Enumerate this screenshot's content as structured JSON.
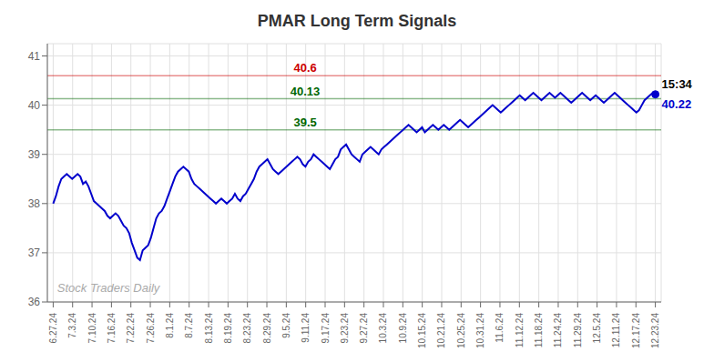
{
  "chart_data": {
    "type": "line",
    "title": "PMAR Long Term Signals",
    "color": "#0000cc",
    "grid": true,
    "xlim": [
      -0.3,
      31.3
    ],
    "xticks": [
      {
        "value": 0,
        "label": "6.27.24"
      },
      {
        "value": 1,
        "label": "7.3.24"
      },
      {
        "value": 2,
        "label": "7.10.24"
      },
      {
        "value": 3,
        "label": "7.16.24"
      },
      {
        "value": 4,
        "label": "7.22.24"
      },
      {
        "value": 5,
        "label": "7.26.24"
      },
      {
        "value": 6,
        "label": "8.1.24"
      },
      {
        "value": 7,
        "label": "8.7.24"
      },
      {
        "value": 8,
        "label": "8.13.24"
      },
      {
        "value": 9,
        "label": "8.19.24"
      },
      {
        "value": 10,
        "label": "8.23.24"
      },
      {
        "value": 11,
        "label": "8.29.24"
      },
      {
        "value": 12,
        "label": "9.5.24"
      },
      {
        "value": 13,
        "label": "9.11.24"
      },
      {
        "value": 14,
        "label": "9.17.24"
      },
      {
        "value": 15,
        "label": "9.23.24"
      },
      {
        "value": 16,
        "label": "9.27.24"
      },
      {
        "value": 17,
        "label": "10.3.24"
      },
      {
        "value": 18,
        "label": "10.9.24"
      },
      {
        "value": 19,
        "label": "10.15.24"
      },
      {
        "value": 20,
        "label": "10.21.24"
      },
      {
        "value": 21,
        "label": "10.25.24"
      },
      {
        "value": 22,
        "label": "10.31.24"
      },
      {
        "value": 23,
        "label": "11.6.24"
      },
      {
        "value": 24,
        "label": "11.12.24"
      },
      {
        "value": 25,
        "label": "11.18.24"
      },
      {
        "value": 26,
        "label": "11.24.24"
      },
      {
        "value": 27,
        "label": "11.29.24"
      },
      {
        "value": 28,
        "label": "12.5.24"
      },
      {
        "value": 29,
        "label": "12.11.24"
      },
      {
        "value": 30,
        "label": "12.17.24"
      },
      {
        "value": 31,
        "label": "12.23.24"
      }
    ],
    "ylim": [
      36.0,
      41.25
    ],
    "yticks": [
      36,
      37,
      38,
      39,
      40,
      41
    ],
    "values": [
      38.0,
      38.15,
      38.35,
      38.5,
      38.55,
      38.6,
      38.55,
      38.5,
      38.55,
      38.6,
      38.55,
      38.4,
      38.45,
      38.35,
      38.2,
      38.05,
      38.0,
      37.95,
      37.9,
      37.85,
      37.75,
      37.7,
      37.75,
      37.8,
      37.75,
      37.65,
      37.55,
      37.5,
      37.4,
      37.2,
      37.05,
      36.9,
      36.85,
      37.05,
      37.1,
      37.15,
      37.3,
      37.5,
      37.7,
      37.8,
      37.85,
      37.95,
      38.1,
      38.25,
      38.4,
      38.55,
      38.65,
      38.7,
      38.75,
      38.7,
      38.65,
      38.5,
      38.4,
      38.35,
      38.3,
      38.25,
      38.2,
      38.15,
      38.1,
      38.05,
      38.0,
      38.05,
      38.1,
      38.05,
      38.0,
      38.05,
      38.1,
      38.2,
      38.1,
      38.05,
      38.15,
      38.2,
      38.3,
      38.4,
      38.5,
      38.65,
      38.75,
      38.8,
      38.85,
      38.9,
      38.8,
      38.7,
      38.65,
      38.6,
      38.65,
      38.7,
      38.75,
      38.8,
      38.85,
      38.9,
      38.95,
      38.9,
      38.8,
      38.75,
      38.85,
      38.9,
      39.0,
      38.95,
      38.9,
      38.85,
      38.8,
      38.75,
      38.7,
      38.8,
      38.9,
      38.95,
      39.1,
      39.15,
      39.2,
      39.1,
      39.0,
      38.95,
      38.9,
      38.85,
      39.0,
      39.05,
      39.1,
      39.15,
      39.1,
      39.05,
      39.0,
      39.1,
      39.15,
      39.2,
      39.25,
      39.3,
      39.35,
      39.4,
      39.45,
      39.5,
      39.55,
      39.6,
      39.55,
      39.5,
      39.45,
      39.5,
      39.55,
      39.45,
      39.5,
      39.55,
      39.6,
      39.55,
      39.5,
      39.55,
      39.6,
      39.55,
      39.5,
      39.55,
      39.6,
      39.65,
      39.7,
      39.65,
      39.6,
      39.55,
      39.6,
      39.65,
      39.7,
      39.75,
      39.8,
      39.85,
      39.9,
      39.95,
      40.0,
      39.95,
      39.9,
      39.85,
      39.9,
      39.95,
      40.0,
      40.05,
      40.1,
      40.15,
      40.2,
      40.15,
      40.1,
      40.15,
      40.2,
      40.25,
      40.2,
      40.15,
      40.1,
      40.15,
      40.2,
      40.25,
      40.2,
      40.15,
      40.2,
      40.25,
      40.2,
      40.15,
      40.1,
      40.05,
      40.1,
      40.15,
      40.2,
      40.25,
      40.2,
      40.15,
      40.1,
      40.15,
      40.2,
      40.15,
      40.1,
      40.05,
      40.1,
      40.15,
      40.2,
      40.25,
      40.2,
      40.15,
      40.1,
      40.05,
      40.0,
      39.95,
      39.9,
      39.85,
      39.9,
      40.0,
      40.1,
      40.15,
      40.2,
      40.25,
      40.22
    ],
    "hlines": [
      {
        "y": 40.6,
        "label": "40.6",
        "color": "#cc0000"
      },
      {
        "y": 40.13,
        "label": "40.13",
        "color": "#006600"
      },
      {
        "y": 39.5,
        "label": "39.5",
        "color": "#006600"
      }
    ],
    "annotations": [
      {
        "text": "15:34",
        "x": 31,
        "y": 40.22,
        "color": "#000000"
      },
      {
        "text": "40.22",
        "x": 31,
        "y": 40.22,
        "color": "#0000cc"
      }
    ],
    "watermark": {
      "text": "Stock Traders Daily",
      "x": 0.02,
      "y": 36.2,
      "color": "#aaaaaa"
    }
  }
}
